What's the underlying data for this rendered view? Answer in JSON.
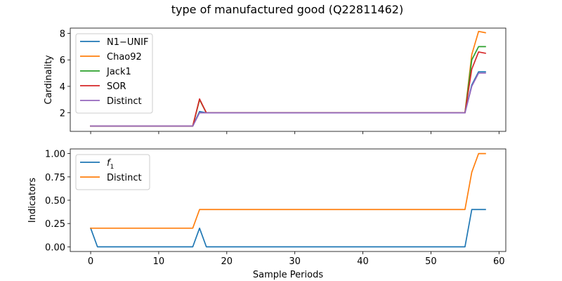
{
  "suptitle": "type of manufactured good (Q22811462)",
  "chart_data": [
    {
      "type": "line",
      "ylabel": "Cardinality",
      "xlabel": "",
      "xlim": [
        -3,
        61
      ],
      "ylim": [
        0.6,
        8.4
      ],
      "xticks": [
        0,
        10,
        20,
        30,
        40,
        50,
        60
      ],
      "yticks": [
        2,
        4,
        6,
        8
      ],
      "show_xtick_labels": false,
      "legend": "upper-left",
      "series": [
        {
          "name": "N1−UNIF",
          "color": "#1f77b4",
          "x": [
            0,
            15,
            16,
            17,
            55,
            56,
            57,
            58
          ],
          "y": [
            1,
            1,
            2.1,
            2,
            2,
            4.1,
            5.1,
            5.1
          ]
        },
        {
          "name": "Chao92",
          "color": "#ff7f0e",
          "x": [
            0,
            15,
            16,
            17,
            55,
            56,
            57,
            58
          ],
          "y": [
            1,
            1,
            3.0,
            2,
            2,
            6.4,
            8.15,
            8.05
          ]
        },
        {
          "name": "Jack1",
          "color": "#2ca02c",
          "x": [
            0,
            15,
            16,
            17,
            55,
            56,
            57,
            58
          ],
          "y": [
            1,
            1,
            3.0,
            2,
            2,
            6.0,
            7.0,
            7.0
          ]
        },
        {
          "name": "SOR",
          "color": "#d62728",
          "x": [
            0,
            15,
            16,
            17,
            55,
            56,
            57,
            58
          ],
          "y": [
            1,
            1,
            3.05,
            2,
            2,
            5.3,
            6.6,
            6.5
          ]
        },
        {
          "name": "Distinct",
          "color": "#9467bd",
          "x": [
            0,
            15,
            16,
            17,
            55,
            56,
            57,
            58
          ],
          "y": [
            1,
            1,
            2.0,
            2,
            2,
            4.0,
            5.0,
            5.0
          ]
        }
      ]
    },
    {
      "type": "line",
      "ylabel": "Indicators",
      "xlabel": "Sample Periods",
      "xlim": [
        -3,
        61
      ],
      "ylim": [
        -0.05,
        1.05
      ],
      "xticks": [
        0,
        10,
        20,
        30,
        40,
        50,
        60
      ],
      "yticks": [
        0.0,
        0.25,
        0.5,
        0.75,
        1.0
      ],
      "ytick_labels": [
        "0.00",
        "0.25",
        "0.50",
        "0.75",
        "1.00"
      ],
      "show_xtick_labels": true,
      "legend": "upper-left",
      "series": [
        {
          "name": "f1",
          "name_base": "f",
          "name_sub": "1",
          "color": "#1f77b4",
          "x": [
            0,
            1,
            15,
            16,
            17,
            55,
            56,
            57,
            58
          ],
          "y": [
            0.2,
            0,
            0,
            0.2,
            0,
            0,
            0.4,
            0.4,
            0.4
          ]
        },
        {
          "name": "Distinct",
          "color": "#ff7f0e",
          "x": [
            0,
            15,
            16,
            55,
            56,
            57,
            58
          ],
          "y": [
            0.2,
            0.2,
            0.4,
            0.4,
            0.8,
            1.0,
            1.0
          ]
        }
      ]
    }
  ]
}
